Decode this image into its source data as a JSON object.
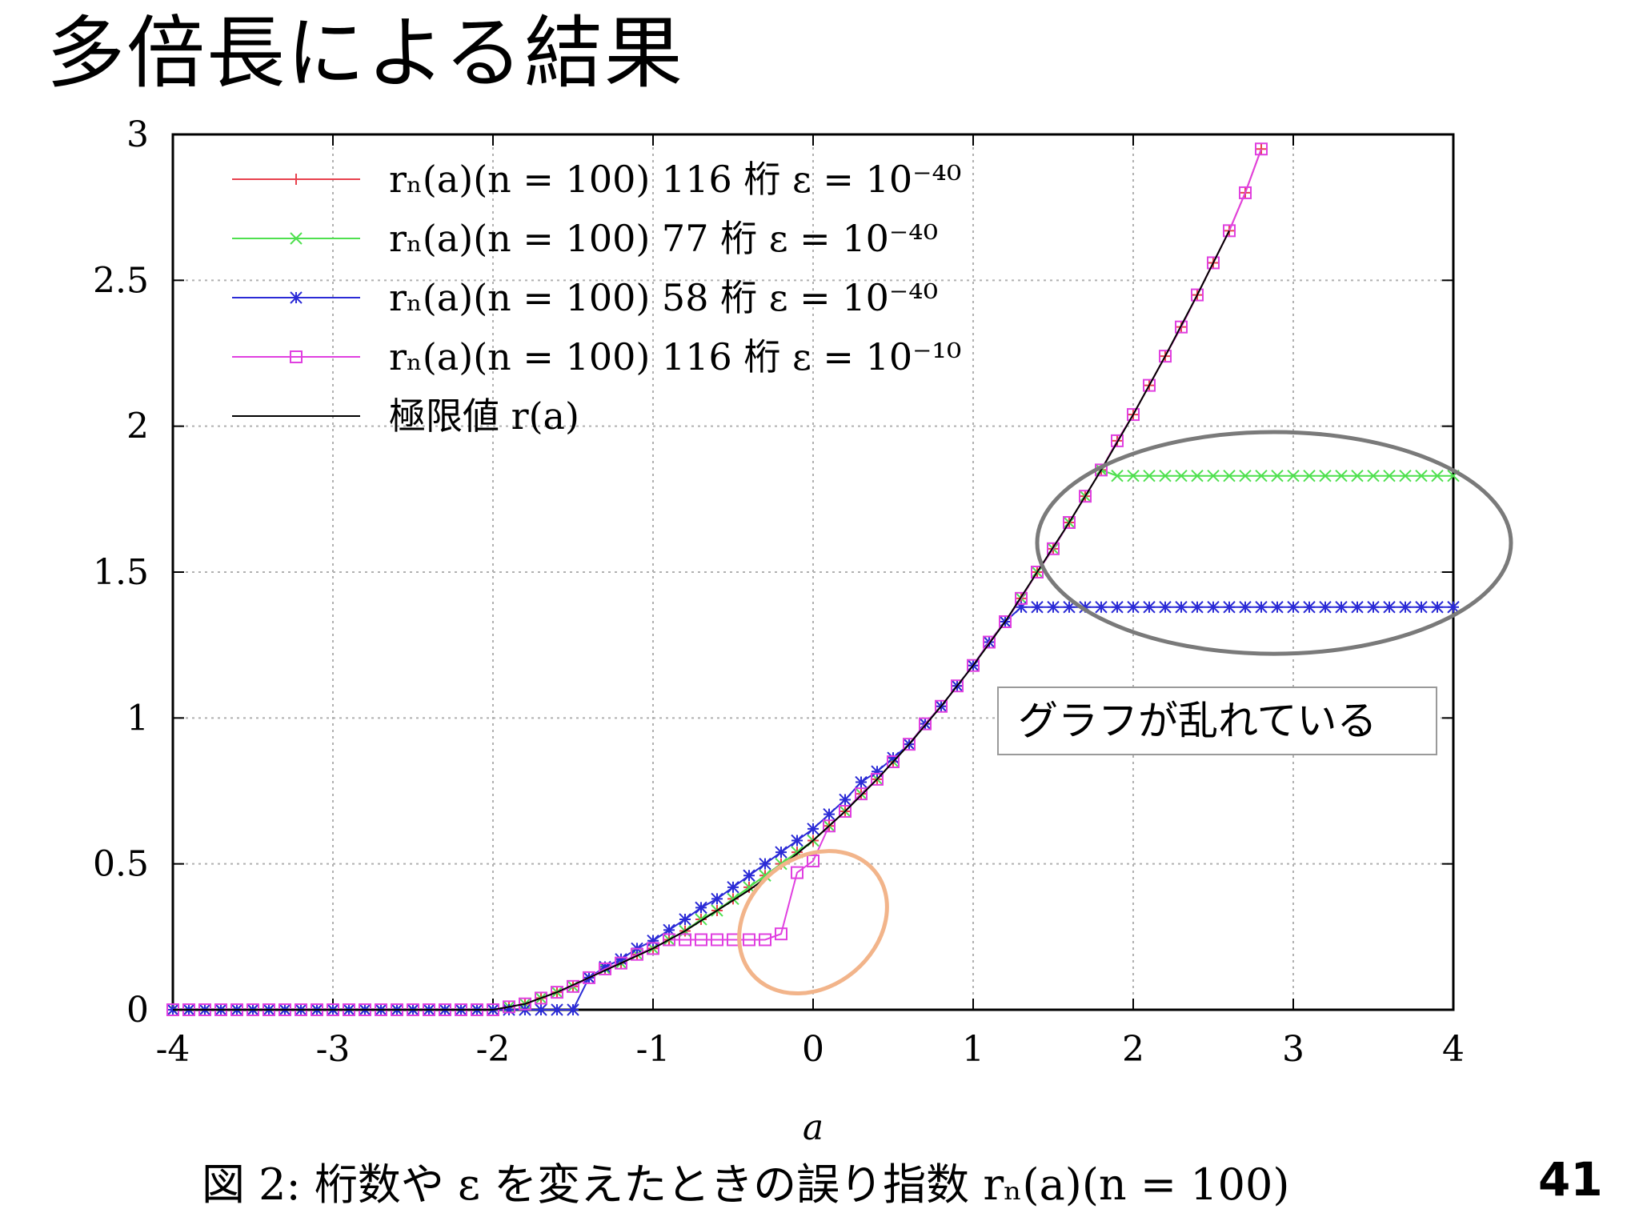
{
  "slide": {
    "title": "多倍長による結果",
    "annotation": "グラフが乱れている",
    "page_number": "41"
  },
  "chart_data": {
    "type": "line",
    "xlabel": "a",
    "ylabel": "",
    "xlim": [
      -4,
      4
    ],
    "ylim": [
      0,
      3
    ],
    "x_ticks": [
      -4,
      -3,
      -2,
      -1,
      0,
      1,
      2,
      3,
      4
    ],
    "y_ticks": [
      0,
      0.5,
      1,
      1.5,
      2,
      2.5,
      3
    ],
    "x_tick_labels": [
      "-4",
      "-3",
      "-2",
      "-1",
      "0",
      "1",
      "2",
      "3",
      "4"
    ],
    "y_tick_labels": [
      "0",
      "0.5",
      "1",
      "1.5",
      "2",
      "2.5",
      "3"
    ],
    "grid": true,
    "legend_position": "top-left",
    "caption": "図 2: 桁数や ε を変えたときの誤り指数 rₙ(a)(n = 100)",
    "series": [
      {
        "name": "rₙ(a)(n = 100) 116 桁 ε = 10⁻⁴⁰",
        "color": "#e8414e",
        "marker": "plus",
        "kind": "sampled",
        "flatten_above": null,
        "plateau": null
      },
      {
        "name": "rₙ(a)(n = 100) 77 桁 ε = 10⁻⁴⁰",
        "color": "#4fe04f",
        "marker": "cross",
        "kind": "sampled",
        "flatten_above": 1.8,
        "plateau": null
      },
      {
        "name": "rₙ(a)(n = 100) 58 桁 ε = 10⁻⁴⁰",
        "color": "#2b2bd6",
        "marker": "star",
        "kind": "sampled",
        "flatten_above": 1.2,
        "plateau": {
          "from": -1.4,
          "to": 0.05
        }
      },
      {
        "name": "rₙ(a)(n = 100) 116 桁 ε = 10⁻¹⁰",
        "color": "#e040e0",
        "marker": "square",
        "kind": "sampled",
        "flatten_above": null,
        "plateau": {
          "from": -0.8,
          "to": -0.25,
          "level": 0.24
        }
      },
      {
        "name": "極限値 r(a)",
        "color": "#000000",
        "marker": "none",
        "kind": "limit"
      }
    ],
    "limit_curve": {
      "x": [
        -4,
        -2,
        -1.8,
        -1.6,
        -1.4,
        -1.2,
        -1.0,
        -0.8,
        -0.6,
        -0.4,
        -0.2,
        0.0,
        0.2,
        0.4,
        0.6,
        0.8,
        1.0,
        1.2,
        1.4,
        1.6,
        1.8,
        2.0,
        2.2,
        2.4,
        2.6
      ],
      "y": [
        0,
        0,
        0.02,
        0.06,
        0.11,
        0.16,
        0.21,
        0.27,
        0.34,
        0.41,
        0.49,
        0.58,
        0.68,
        0.79,
        0.91,
        1.04,
        1.18,
        1.33,
        1.5,
        1.67,
        1.85,
        2.04,
        2.24,
        2.45,
        2.67
      ]
    },
    "sampled_curve": {
      "x": [
        -4.0,
        -3.9,
        -3.8,
        -3.7,
        -3.6,
        -3.5,
        -3.4,
        -3.3,
        -3.2,
        -3.1,
        -3.0,
        -2.9,
        -2.8,
        -2.7,
        -2.6,
        -2.5,
        -2.4,
        -2.3,
        -2.2,
        -2.1,
        -2.0,
        -1.9,
        -1.8,
        -1.7,
        -1.6,
        -1.5,
        -1.4,
        -1.3,
        -1.2,
        -1.1,
        -1.0,
        -0.9,
        -0.8,
        -0.7,
        -0.6,
        -0.5,
        -0.4,
        -0.3,
        -0.2,
        -0.1,
        0.0,
        0.1,
        0.2,
        0.3,
        0.4,
        0.5,
        0.6,
        0.7,
        0.8,
        0.9,
        1.0,
        1.1,
        1.2,
        1.3,
        1.4,
        1.5,
        1.6,
        1.7,
        1.8,
        1.9,
        2.0,
        2.1,
        2.2,
        2.3,
        2.4,
        2.5,
        2.6,
        2.7,
        2.8
      ],
      "y": [
        0,
        0,
        0,
        0,
        0,
        0,
        0,
        0,
        0,
        0,
        0,
        0,
        0,
        0,
        0,
        0,
        0,
        0,
        0,
        0,
        0,
        0.01,
        0.02,
        0.04,
        0.06,
        0.08,
        0.11,
        0.14,
        0.16,
        0.19,
        0.21,
        0.24,
        0.27,
        0.31,
        0.34,
        0.38,
        0.42,
        0.46,
        0.5,
        0.54,
        0.58,
        0.63,
        0.68,
        0.74,
        0.79,
        0.85,
        0.91,
        0.98,
        1.04,
        1.11,
        1.18,
        1.26,
        1.33,
        1.41,
        1.5,
        1.58,
        1.67,
        1.76,
        1.85,
        1.95,
        2.04,
        2.14,
        2.24,
        2.34,
        2.45,
        2.56,
        2.67,
        2.8,
        2.95
      ]
    },
    "blue_plateau_level": 1.38,
    "green_plateau_level": 1.83,
    "annotations": [
      {
        "shape": "ellipse",
        "color": "#7a7a7a",
        "center": [
          2.88,
          1.6
        ],
        "rx": 1.48,
        "ry": 0.38
      },
      {
        "shape": "ellipse",
        "color": "#f2b48a",
        "center": [
          0.0,
          0.3
        ],
        "rx": 0.5,
        "ry": 0.22,
        "rotation_deg": -40
      }
    ]
  }
}
